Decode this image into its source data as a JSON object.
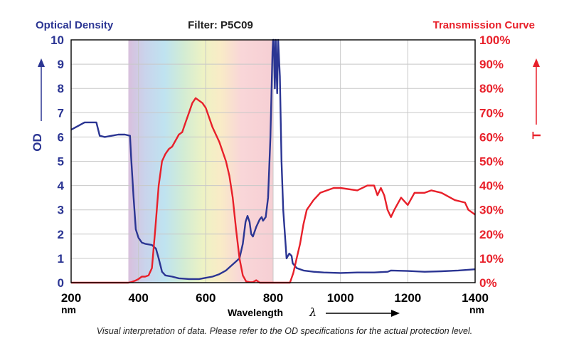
{
  "chart_data": {
    "type": "line",
    "title": "Filter: P5C09",
    "left_header": "Optical Density",
    "right_header": "Transmission Curve",
    "ylabel_left": "OD",
    "ylabel_right": "T",
    "xlabel": "Wavelength",
    "xlabel_symbol": "λ",
    "x_unit": "nm",
    "xlim": [
      200,
      1400
    ],
    "ylim_left": [
      0,
      10
    ],
    "ylim_right": [
      0,
      100
    ],
    "x_ticks": [
      "200",
      "400",
      "600",
      "800",
      "1000",
      "1200",
      "1400"
    ],
    "y_ticks_left": [
      "0",
      "1",
      "2",
      "3",
      "4",
      "5",
      "6",
      "7",
      "8",
      "9",
      "10"
    ],
    "y_ticks_right": [
      "0%",
      "10%",
      "20%",
      "30%",
      "40%",
      "50%",
      "60%",
      "70%",
      "80%",
      "90%",
      "100%"
    ],
    "grid": true,
    "colors": {
      "od": "#2b3593",
      "transmission": "#e8202a",
      "grid": "#c8c8c8"
    },
    "series": [
      {
        "name": "Optical Density",
        "axis": "left",
        "x": [
          200,
          220,
          240,
          255,
          275,
          285,
          300,
          320,
          340,
          360,
          375,
          378,
          385,
          392,
          400,
          410,
          420,
          440,
          452,
          460,
          470,
          480,
          500,
          520,
          550,
          580,
          600,
          620,
          640,
          660,
          680,
          700,
          710,
          718,
          724,
          730,
          735,
          740,
          750,
          760,
          766,
          770,
          778,
          785,
          792,
          798,
          800,
          802,
          805,
          808,
          812,
          815,
          820,
          825,
          830,
          840,
          848,
          855,
          858,
          870,
          890,
          920,
          950,
          1000,
          1050,
          1100,
          1140,
          1150,
          1200,
          1250,
          1300,
          1350,
          1400
        ],
        "values": [
          6.3,
          6.45,
          6.6,
          6.6,
          6.6,
          6.05,
          6.0,
          6.05,
          6.1,
          6.1,
          6.05,
          5.2,
          3.6,
          2.2,
          1.85,
          1.65,
          1.6,
          1.55,
          1.4,
          1.0,
          0.45,
          0.3,
          0.25,
          0.18,
          0.15,
          0.15,
          0.2,
          0.25,
          0.35,
          0.5,
          0.75,
          1.0,
          1.6,
          2.5,
          2.75,
          2.5,
          2.0,
          1.9,
          2.3,
          2.6,
          2.7,
          2.55,
          2.7,
          3.5,
          6.0,
          9.5,
          10,
          10,
          8.0,
          10,
          7.8,
          10,
          8.5,
          5.0,
          3.0,
          1.0,
          1.2,
          1.1,
          0.8,
          0.6,
          0.5,
          0.45,
          0.42,
          0.4,
          0.42,
          0.42,
          0.45,
          0.5,
          0.48,
          0.45,
          0.47,
          0.5,
          0.55
        ]
      },
      {
        "name": "Transmission Curve",
        "axis": "right",
        "x": [
          200,
          370,
          380,
          390,
          400,
          410,
          420,
          430,
          440,
          450,
          460,
          470,
          480,
          490,
          500,
          520,
          530,
          540,
          550,
          560,
          570,
          580,
          590,
          600,
          620,
          640,
          660,
          670,
          680,
          690,
          700,
          710,
          720,
          730,
          740,
          750,
          760,
          770,
          850,
          860,
          870,
          880,
          890,
          900,
          920,
          940,
          960,
          980,
          1000,
          1050,
          1080,
          1100,
          1110,
          1120,
          1130,
          1140,
          1150,
          1160,
          1180,
          1200,
          1220,
          1250,
          1270,
          1300,
          1340,
          1370,
          1380,
          1400
        ],
        "values": [
          0,
          0,
          0.3,
          0.8,
          1.5,
          2.5,
          2.5,
          3,
          6,
          22,
          40,
          50,
          53,
          55,
          56,
          61,
          62,
          66,
          70,
          74,
          76,
          75,
          74,
          72,
          64,
          58,
          50,
          44,
          35,
          22,
          10,
          3,
          0.5,
          0.2,
          0.2,
          1.0,
          0,
          0,
          0,
          4,
          10,
          16,
          24,
          30,
          34,
          37,
          38,
          39,
          39,
          38,
          40,
          40,
          36,
          39,
          36,
          30,
          27,
          30,
          35,
          32,
          37,
          37,
          38,
          37,
          34,
          33,
          30,
          28
        ]
      }
    ],
    "spectrum_band": {
      "from": 370,
      "to": 800
    },
    "footnote": "Visual interpretation of data. Please refer to the OD specifications for the actual protection level."
  }
}
